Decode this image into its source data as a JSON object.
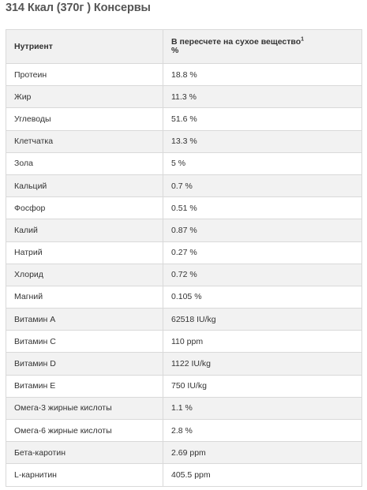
{
  "title": "314 Ккал (370г ) Консервы",
  "table": {
    "headers": {
      "nutrient": "Нутриент",
      "value_line1": "В пересчете на сухое вещество",
      "value_sup": "1",
      "value_line2": "%"
    },
    "rows": [
      {
        "nutrient": "Протеин",
        "value": "18.8 %"
      },
      {
        "nutrient": "Жир",
        "value": "11.3 %"
      },
      {
        "nutrient": "Углеводы",
        "value": "51.6 %"
      },
      {
        "nutrient": "Клетчатка",
        "value": "13.3 %"
      },
      {
        "nutrient": "Зола",
        "value": "5 %"
      },
      {
        "nutrient": "Кальций",
        "value": "0.7 %"
      },
      {
        "nutrient": "Фосфор",
        "value": "0.51 %"
      },
      {
        "nutrient": "Калий",
        "value": "0.87 %"
      },
      {
        "nutrient": "Натрий",
        "value": "0.27 %"
      },
      {
        "nutrient": "Хлорид",
        "value": "0.72 %"
      },
      {
        "nutrient": "Магний",
        "value": "0.105 %"
      },
      {
        "nutrient": "Витамин A",
        "value": "62518 IU/kg"
      },
      {
        "nutrient": "Витамин C",
        "value": "110 ppm"
      },
      {
        "nutrient": "Витамин D",
        "value": "1122 IU/kg"
      },
      {
        "nutrient": "Витамин E",
        "value": "750 IU/kg"
      },
      {
        "nutrient": "Омега-3 жирные кислоты",
        "value": "1.1 %"
      },
      {
        "nutrient": "Омега-6 жирные кислоты",
        "value": "2.8 %"
      },
      {
        "nutrient": "Бета-каротин",
        "value": "2.69 ppm"
      },
      {
        "nutrient": "L-карнитин",
        "value": "405.5 ppm"
      }
    ]
  }
}
